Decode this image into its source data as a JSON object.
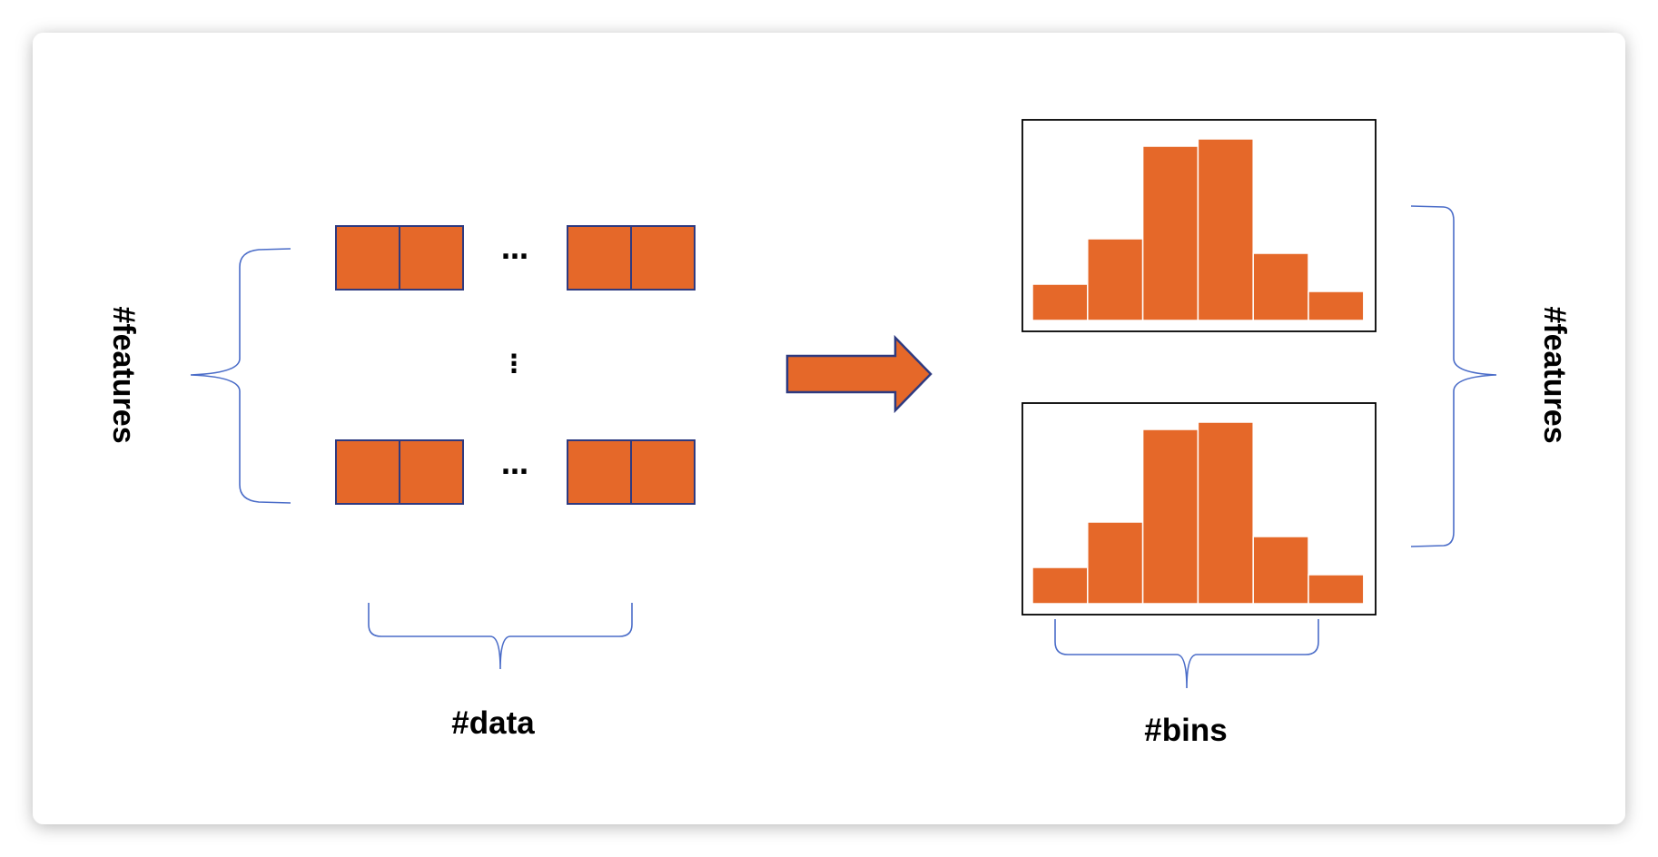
{
  "colors": {
    "fill": "#E56829",
    "cell_border": "#2E3A80",
    "brace": "#4A6CC8",
    "frame": "#000000",
    "card": "#ffffff"
  },
  "labels": {
    "left_features": "#features",
    "data": "#data",
    "bins": "#bins",
    "right_features": "#features",
    "h_ellipsis": "…",
    "v_ellipsis": "⋮"
  },
  "histograms": [
    {
      "bin_heights": [
        0.2,
        0.45,
        0.96,
        1.0,
        0.37,
        0.16
      ]
    },
    {
      "bin_heights": [
        0.2,
        0.45,
        0.96,
        1.0,
        0.37,
        0.16
      ]
    }
  ]
}
